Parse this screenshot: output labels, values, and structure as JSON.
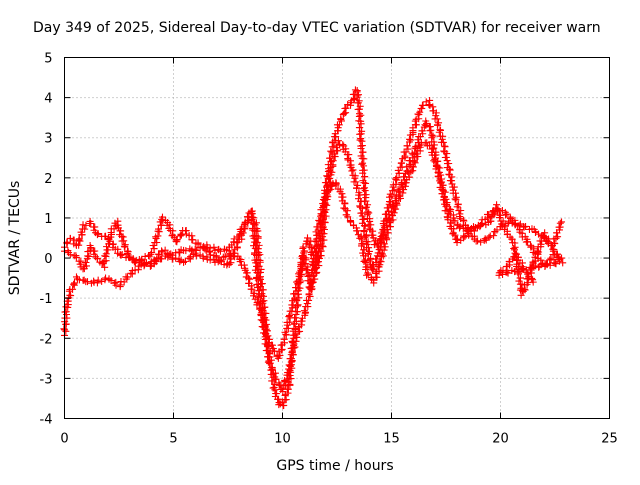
{
  "chart_data": {
    "type": "scatter",
    "title": "Day 349 of 2025, Sidereal Day-to-day VTEC variation (SDTVAR) for receiver warn",
    "xlabel": "GPS time / hours",
    "ylabel": "SDTVAR / TECUs",
    "xlim": [
      0,
      25
    ],
    "ylim": [
      -4,
      5
    ],
    "xticks": [
      "0",
      "5",
      "10",
      "15",
      "20",
      "25"
    ],
    "yticks": [
      "-4",
      "-3",
      "-2",
      "-1",
      "0",
      "1",
      "2",
      "3",
      "4",
      "5"
    ],
    "grid": true,
    "legend": "none",
    "marker": "plus",
    "series": [
      {
        "name": "track-a",
        "color": "#ff0000",
        "points": [
          [
            0.0,
            -1.9
          ],
          [
            0.1,
            -1.2
          ],
          [
            0.3,
            -0.8
          ],
          [
            0.6,
            -0.5
          ],
          [
            1.0,
            -0.6
          ],
          [
            1.5,
            -0.6
          ],
          [
            2.0,
            -0.5
          ],
          [
            2.5,
            -0.7
          ],
          [
            3.0,
            -0.4
          ],
          [
            3.5,
            -0.2
          ],
          [
            4.0,
            -0.1
          ],
          [
            4.5,
            0.0
          ],
          [
            5.0,
            0.1
          ],
          [
            5.5,
            0.2
          ],
          [
            6.0,
            0.2
          ],
          [
            6.5,
            0.3
          ],
          [
            7.0,
            0.2
          ],
          [
            7.5,
            0.2
          ],
          [
            8.0,
            0.6
          ],
          [
            8.3,
            0.9
          ],
          [
            8.5,
            1.1
          ],
          [
            8.8,
            0.8
          ],
          [
            9.0,
            -0.5
          ],
          [
            9.3,
            -2.0
          ],
          [
            9.6,
            -3.2
          ],
          [
            9.8,
            -3.6
          ],
          [
            10.0,
            -3.7
          ],
          [
            10.3,
            -3.2
          ],
          [
            10.5,
            -2.0
          ],
          [
            10.8,
            -0.5
          ],
          [
            11.0,
            0.3
          ],
          [
            11.2,
            0.5
          ],
          [
            11.5,
            -0.3
          ],
          [
            11.8,
            0.8
          ],
          [
            12.0,
            1.8
          ],
          [
            12.3,
            2.8
          ],
          [
            12.5,
            3.2
          ],
          [
            12.8,
            3.6
          ],
          [
            13.0,
            3.8
          ],
          [
            13.2,
            3.9
          ],
          [
            13.4,
            4.2
          ],
          [
            13.5,
            3.9
          ],
          [
            13.6,
            3.0
          ],
          [
            13.8,
            1.5
          ],
          [
            14.0,
            0.8
          ],
          [
            14.3,
            0.3
          ],
          [
            14.6,
            0.6
          ],
          [
            15.0,
            1.2
          ],
          [
            15.5,
            1.9
          ],
          [
            16.0,
            2.6
          ],
          [
            16.3,
            3.0
          ],
          [
            16.6,
            3.4
          ],
          [
            16.8,
            3.2
          ],
          [
            17.0,
            2.6
          ],
          [
            17.5,
            1.4
          ],
          [
            18.0,
            0.8
          ],
          [
            18.5,
            0.7
          ],
          [
            19.0,
            0.8
          ],
          [
            19.5,
            1.1
          ],
          [
            20.0,
            1.2
          ],
          [
            20.5,
            1.0
          ],
          [
            21.0,
            0.6
          ],
          [
            21.5,
            0.2
          ],
          [
            22.0,
            -0.2
          ],
          [
            22.5,
            0.1
          ],
          [
            22.8,
            0.0
          ]
        ]
      },
      {
        "name": "track-b",
        "color": "#ff0000",
        "points": [
          [
            0.0,
            0.3
          ],
          [
            0.3,
            0.5
          ],
          [
            0.6,
            0.3
          ],
          [
            0.9,
            0.8
          ],
          [
            1.2,
            0.9
          ],
          [
            1.5,
            0.6
          ],
          [
            2.0,
            0.5
          ],
          [
            2.5,
            0.1
          ],
          [
            3.0,
            0.0
          ],
          [
            3.5,
            -0.1
          ],
          [
            4.0,
            -0.2
          ],
          [
            4.5,
            0.2
          ],
          [
            5.0,
            0.0
          ],
          [
            5.5,
            -0.1
          ],
          [
            6.0,
            0.1
          ],
          [
            6.5,
            0.0
          ],
          [
            7.0,
            -0.1
          ],
          [
            7.5,
            0.1
          ],
          [
            8.0,
            0.0
          ],
          [
            8.3,
            -0.3
          ],
          [
            8.6,
            -0.8
          ],
          [
            9.0,
            -1.3
          ],
          [
            9.4,
            -2.6
          ],
          [
            9.7,
            -3.0
          ],
          [
            10.0,
            -3.3
          ],
          [
            10.3,
            -2.8
          ],
          [
            10.6,
            -2.0
          ],
          [
            11.0,
            -1.4
          ],
          [
            11.4,
            -0.6
          ],
          [
            11.8,
            0.2
          ],
          [
            12.0,
            1.4
          ],
          [
            12.3,
            2.4
          ],
          [
            12.6,
            2.9
          ],
          [
            12.9,
            2.7
          ],
          [
            13.2,
            2.2
          ],
          [
            13.5,
            1.6
          ],
          [
            13.8,
            0.6
          ],
          [
            14.1,
            -0.3
          ],
          [
            14.4,
            0.1
          ],
          [
            14.7,
            0.9
          ],
          [
            15.0,
            1.6
          ],
          [
            15.5,
            2.4
          ],
          [
            16.0,
            3.2
          ],
          [
            16.4,
            3.8
          ],
          [
            16.7,
            3.9
          ],
          [
            17.0,
            3.6
          ],
          [
            17.4,
            2.8
          ],
          [
            17.8,
            1.8
          ],
          [
            18.2,
            1.0
          ],
          [
            18.6,
            0.6
          ],
          [
            19.0,
            0.4
          ],
          [
            19.5,
            0.5
          ],
          [
            20.0,
            0.8
          ],
          [
            20.5,
            0.9
          ],
          [
            21.0,
            0.8
          ],
          [
            21.5,
            0.7
          ],
          [
            22.0,
            0.5
          ],
          [
            22.4,
            0.3
          ],
          [
            22.8,
            0.9
          ]
        ]
      },
      {
        "name": "track-c",
        "color": "#ff0000",
        "points": [
          [
            0.0,
            0.2
          ],
          [
            0.3,
            0.1
          ],
          [
            0.6,
            0.0
          ],
          [
            0.9,
            -0.3
          ],
          [
            1.2,
            0.3
          ],
          [
            1.5,
            0.0
          ],
          [
            1.8,
            -0.2
          ],
          [
            2.1,
            0.6
          ],
          [
            2.4,
            0.9
          ],
          [
            2.7,
            0.4
          ],
          [
            3.0,
            0.0
          ],
          [
            3.3,
            -0.1
          ],
          [
            3.6,
            0.0
          ],
          [
            4.0,
            0.1
          ],
          [
            4.5,
            1.0
          ],
          [
            4.8,
            0.8
          ],
          [
            5.1,
            0.4
          ],
          [
            5.5,
            0.7
          ],
          [
            6.0,
            0.4
          ],
          [
            6.5,
            0.2
          ],
          [
            7.0,
            0.0
          ],
          [
            7.5,
            -0.2
          ],
          [
            8.0,
            0.4
          ],
          [
            8.3,
            0.8
          ],
          [
            8.6,
            1.2
          ],
          [
            8.9,
            -0.9
          ],
          [
            9.2,
            -1.8
          ],
          [
            9.5,
            -2.2
          ],
          [
            9.8,
            -2.5
          ],
          [
            10.1,
            -2.0
          ],
          [
            10.4,
            -1.3
          ],
          [
            10.7,
            -0.6
          ],
          [
            11.0,
            0.1
          ],
          [
            11.3,
            -0.8
          ],
          [
            11.6,
            0.7
          ],
          [
            12.0,
            1.6
          ],
          [
            12.4,
            1.9
          ],
          [
            12.7,
            1.6
          ],
          [
            13.0,
            1.0
          ],
          [
            13.3,
            0.8
          ],
          [
            13.6,
            0.5
          ],
          [
            13.9,
            -0.4
          ],
          [
            14.2,
            -0.6
          ],
          [
            14.5,
            -0.1
          ],
          [
            14.8,
            0.6
          ],
          [
            15.2,
            1.3
          ],
          [
            15.6,
            1.8
          ],
          [
            16.0,
            2.3
          ],
          [
            16.4,
            2.9
          ],
          [
            16.8,
            2.8
          ],
          [
            17.2,
            2.0
          ],
          [
            17.6,
            1.0
          ],
          [
            18.0,
            0.4
          ],
          [
            18.5,
            0.6
          ],
          [
            19.0,
            0.8
          ],
          [
            19.5,
            0.9
          ],
          [
            19.8,
            1.3
          ],
          [
            20.2,
            0.7
          ],
          [
            20.6,
            0.4
          ],
          [
            21.0,
            -0.9
          ],
          [
            21.3,
            -0.5
          ],
          [
            21.6,
            0.0
          ],
          [
            22.0,
            0.6
          ],
          [
            22.4,
            0.2
          ],
          [
            22.8,
            -0.1
          ],
          [
            19.9,
            -0.4
          ],
          [
            20.3,
            -0.2
          ],
          [
            20.7,
            0.1
          ],
          [
            21.1,
            -0.3
          ],
          [
            21.5,
            -0.6
          ]
        ]
      }
    ]
  }
}
